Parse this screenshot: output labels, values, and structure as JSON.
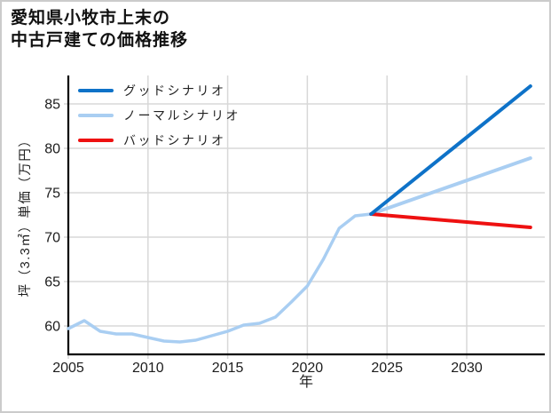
{
  "title": {
    "line1": "愛知県小牧市上末の",
    "line2": "中古戸建ての価格推移"
  },
  "axes": {
    "x_label": "年",
    "y_label": "坪（3.3㎡）単価（万円）"
  },
  "legend": [
    {
      "id": "good",
      "label": "グッドシナリオ",
      "color": "#0e72c8"
    },
    {
      "id": "normal",
      "label": "ノーマルシナリオ",
      "color": "#a9cef2"
    },
    {
      "id": "bad",
      "label": "バッドシナリオ",
      "color": "#ee1111"
    }
  ],
  "chart_data": {
    "type": "line",
    "title": "愛知県小牧市上末の中古戸建ての価格推移",
    "xlabel": "年",
    "ylabel": "坪（3.3㎡）単価（万円）",
    "x_ticks": [
      2005,
      2010,
      2015,
      2020,
      2025,
      2030
    ],
    "y_ticks": [
      60,
      65,
      70,
      75,
      80,
      85
    ],
    "xlim": [
      2005,
      2034.9
    ],
    "ylim": [
      56.8,
      88.2
    ],
    "grid": true,
    "legend_position": "upper-left",
    "history": {
      "color": "#a9cef2",
      "years": [
        2005,
        2006,
        2007,
        2008,
        2009,
        2010,
        2011,
        2012,
        2013,
        2014,
        2015,
        2016,
        2017,
        2018,
        2019,
        2020,
        2021,
        2022,
        2023,
        2024
      ],
      "values": [
        59.7,
        60.6,
        59.4,
        59.1,
        59.1,
        58.7,
        58.3,
        58.2,
        58.4,
        58.9,
        59.4,
        60.1,
        60.3,
        61.0,
        62.7,
        64.5,
        67.5,
        71.0,
        72.4,
        72.6
      ]
    },
    "scenarios": [
      {
        "name": "グッドシナリオ",
        "color": "#0e72c8",
        "years": [
          2024,
          2034
        ],
        "values": [
          72.6,
          87.0
        ]
      },
      {
        "name": "ノーマルシナリオ",
        "color": "#a9cef2",
        "years": [
          2024,
          2034
        ],
        "values": [
          72.6,
          78.9
        ]
      },
      {
        "name": "バッドシナリオ",
        "color": "#ee1111",
        "years": [
          2024,
          2034
        ],
        "values": [
          72.6,
          71.1
        ]
      }
    ]
  },
  "colors": {
    "grid": "#d8d8d8",
    "spine": "#000000",
    "tick_label": "#1c1c1c",
    "background": "#ffffff",
    "border": "#cbcbcb",
    "title_text": "#111111"
  }
}
